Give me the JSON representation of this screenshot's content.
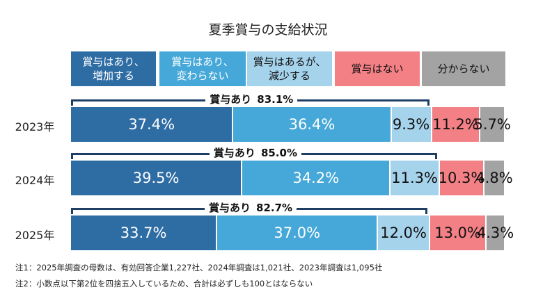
{
  "chart_data": {
    "type": "bar",
    "orientation": "horizontal",
    "stacked": "100%",
    "title": "夏季賞与の支給状況",
    "categories": [
      "2023年",
      "2024年",
      "2025年"
    ],
    "series": [
      {
        "name": "賞与はあり、増加する",
        "legend_lines": [
          "賞与はあり、",
          "増加する"
        ],
        "color": "#2e6ca4",
        "text_color": "#ffffff",
        "values": [
          37.4,
          39.5,
          33.7
        ]
      },
      {
        "name": "賞与はあり、変わらない",
        "legend_lines": [
          "賞与はあり、",
          "変わらない"
        ],
        "color": "#45a8d8",
        "text_color": "#ffffff",
        "values": [
          36.4,
          34.2,
          37.0
        ]
      },
      {
        "name": "賞与はあるが、減少する",
        "legend_lines": [
          "賞与はあるが、",
          "減少する"
        ],
        "color": "#a6d3ec",
        "text_color": "#111111",
        "values": [
          9.3,
          11.3,
          12.0
        ]
      },
      {
        "name": "賞与はない",
        "legend_lines": [
          "賞与はない"
        ],
        "color": "#f28085",
        "text_color": "#111111",
        "values": [
          11.2,
          10.3,
          13.0
        ]
      },
      {
        "name": "分からない",
        "legend_lines": [
          "分からない"
        ],
        "color": "#a3a3a3",
        "text_color": "#111111",
        "values": [
          5.7,
          4.8,
          4.3
        ]
      }
    ],
    "data_labels": [
      [
        "37.4%",
        "36.4%",
        "9.3%",
        "11.2%",
        "5.7%"
      ],
      [
        "39.5%",
        "34.2%",
        "11.3%",
        "10.3%",
        "4.8%"
      ],
      [
        "33.7%",
        "37.0%",
        "12.0%",
        "13.0%",
        "4.3%"
      ]
    ],
    "annotations": [
      {
        "label": "賞与あり",
        "value": "83.1%"
      },
      {
        "label": "賞与あり",
        "value": "85.0%"
      },
      {
        "label": "賞与あり",
        "value": "82.7%"
      }
    ],
    "legend_position": "top",
    "grid": false
  },
  "notes": [
    "注1：2025年調査の母数は、有効回答企業1,227社、2024年調査は1,021社、2023年調査は1,095社",
    "注2：小数点以下第2位を四捨五入しているため、合計は必ずしも100とはならない"
  ]
}
